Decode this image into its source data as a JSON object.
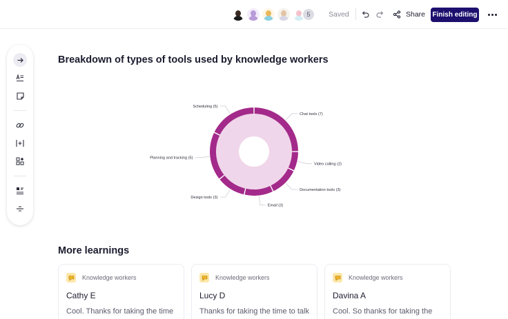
{
  "topbar": {
    "avatars": [
      {
        "name": "avatar-1",
        "head": "#3a2a22",
        "body": "#1b1b1b",
        "bg": "#ffffff"
      },
      {
        "name": "avatar-2",
        "head": "#b89ad8",
        "body": "#b89ad8",
        "bg": "#f3ecfa"
      },
      {
        "name": "avatar-3",
        "head": "#e8b85a",
        "body": "#8ad0e0",
        "bg": "#fff6e6"
      },
      {
        "name": "avatar-4",
        "head": "#e2c4a4",
        "body": "#d6d6e6",
        "bg": "#f6f2ec"
      },
      {
        "name": "avatar-5",
        "head": "#f3c2cc",
        "body": "#d4eef4",
        "bg": "#ffffff"
      }
    ],
    "collaborator_count": "5",
    "saved_label": "Saved",
    "share_label": "Share",
    "finish_label": "Finish editing"
  },
  "toolbar": {
    "tools": [
      "arrow-right-icon",
      "text-format-icon",
      "sticky-note-icon",
      "link-icon",
      "insert-column-icon",
      "widgets-icon",
      "layout-icon",
      "divider-icon"
    ]
  },
  "main": {
    "chart_title": "Breakdown of types of tools used by knowledge workers",
    "section_title": "More learnings"
  },
  "chart_data": {
    "type": "pie",
    "title": "Breakdown of types of tools used by knowledge workers",
    "style": "double-ring donut",
    "colors": {
      "outer": "#a32a8a",
      "inner": "#f0d6ea"
    },
    "slices": [
      {
        "label": "Chat tools (7)",
        "value": 7
      },
      {
        "label": "Video calling (2)",
        "value": 2
      },
      {
        "label": "Documentation tools (3)",
        "value": 3
      },
      {
        "label": "Email (3)",
        "value": 3
      },
      {
        "label": "Design tools (3)",
        "value": 3
      },
      {
        "label": "Planning and tracking (5)",
        "value": 5
      },
      {
        "label": "Scheduling (5)",
        "value": 5
      }
    ]
  },
  "cards": [
    {
      "tag": "Knowledge workers",
      "name": "Cathy E",
      "quote": "Cool. Thanks for taking the time to talk with us today. We just"
    },
    {
      "tag": "Knowledge workers",
      "name": "Lucy D",
      "quote": "Thanks for taking the time to talk with us today. I would love to"
    },
    {
      "tag": "Knowledge workers",
      "name": "Davina A",
      "quote": "Cool. So thanks for taking the time to talk with us today. We"
    }
  ]
}
